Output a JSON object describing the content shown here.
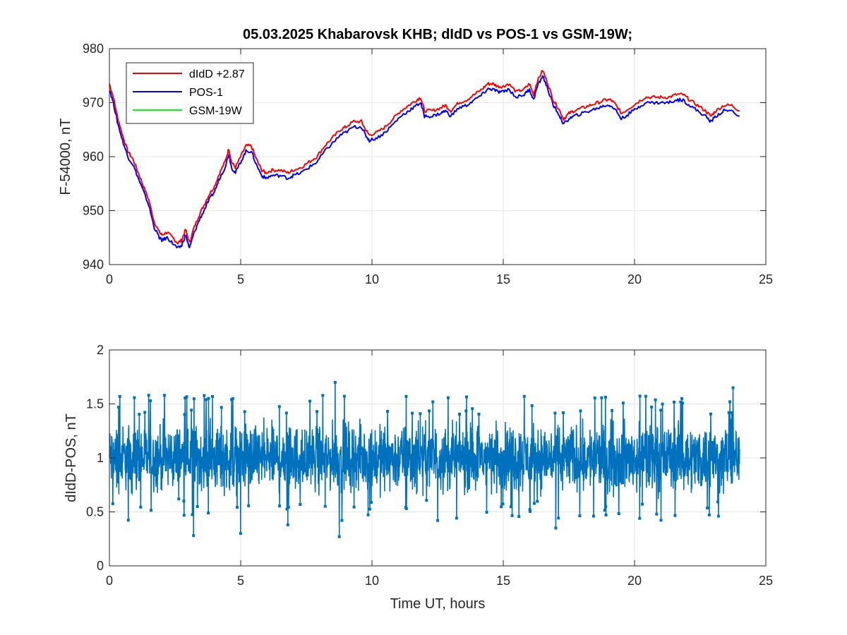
{
  "chart_data": [
    {
      "type": "line",
      "title": "05.03.2025  Khabarovsk KHB; dIdD vs POS-1 vs GSM-19W;",
      "xlabel": "",
      "ylabel": "F-54000, nT",
      "xlim": [
        0,
        25
      ],
      "ylim": [
        940,
        980
      ],
      "xticks": [
        0,
        5,
        10,
        15,
        20,
        25
      ],
      "yticks": [
        940,
        950,
        960,
        970,
        980
      ],
      "grid": true,
      "legend_position": "top-left",
      "series": [
        {
          "name": "dIdD +2.87",
          "color": "#ff0000",
          "x": [
            0,
            0.15,
            0.3,
            0.5,
            0.7,
            0.9,
            1.1,
            1.3,
            1.5,
            1.7,
            1.9,
            2.0,
            2.2,
            2.4,
            2.6,
            2.75,
            2.9,
            3.05,
            3.2,
            3.4,
            3.6,
            3.8,
            4.0,
            4.2,
            4.4,
            4.55,
            4.65,
            4.8,
            5.0,
            5.2,
            5.4,
            5.6,
            5.8,
            5.95,
            6.2,
            6.5,
            6.8,
            7.0,
            7.3,
            7.6,
            7.9,
            8.2,
            8.5,
            8.8,
            9.0,
            9.3,
            9.6,
            9.75,
            9.9,
            10.2,
            10.5,
            10.8,
            11.1,
            11.4,
            11.7,
            11.85,
            12.0,
            12.3,
            12.6,
            12.8,
            13.0,
            13.3,
            13.6,
            13.9,
            14.2,
            14.4,
            14.6,
            14.8,
            15.0,
            15.2,
            15.5,
            15.8,
            16.0,
            16.15,
            16.3,
            16.5,
            16.7,
            16.9,
            17.1,
            17.3,
            17.5,
            17.7,
            18.0,
            18.3,
            18.6,
            18.9,
            19.1,
            19.3,
            19.5,
            19.8,
            20.1,
            20.4,
            20.7,
            21.0,
            21.3,
            21.6,
            21.85,
            22.1,
            22.4,
            22.7,
            22.9,
            23.1,
            23.4,
            23.7,
            24.0
          ],
          "y": [
            973.5,
            971,
            967.5,
            964,
            961,
            959.5,
            957,
            954.5,
            952,
            948,
            946,
            945.5,
            946,
            945,
            944,
            944.5,
            946.5,
            944,
            946.5,
            949,
            951,
            953,
            954.5,
            957,
            959,
            961.5,
            959,
            958,
            960,
            962,
            962,
            959.5,
            957.5,
            957,
            957.5,
            957.5,
            957,
            957.5,
            958,
            959,
            960,
            962,
            963.5,
            965,
            965.5,
            966.5,
            966.5,
            965,
            964,
            964.5,
            965.5,
            967,
            968.5,
            969.5,
            970.5,
            971,
            968.5,
            968.5,
            969,
            969.5,
            968.5,
            970,
            970.5,
            971.5,
            972.5,
            973.5,
            973.5,
            973,
            973,
            973.5,
            972,
            972.5,
            973.5,
            971.5,
            974,
            976,
            973.5,
            970.5,
            969,
            967,
            968,
            968.5,
            969,
            969.5,
            970,
            970.5,
            970.5,
            969.5,
            968,
            969,
            970,
            971,
            971,
            971,
            971,
            971.5,
            971.5,
            970.5,
            969.5,
            968.5,
            967.5,
            968.5,
            969.5,
            969.5,
            968.5
          ]
        },
        {
          "name": "POS-1",
          "color": "#0000ff",
          "x": [
            0,
            0.15,
            0.3,
            0.5,
            0.7,
            0.9,
            1.1,
            1.3,
            1.5,
            1.7,
            1.9,
            2.0,
            2.2,
            2.4,
            2.6,
            2.75,
            2.9,
            3.05,
            3.2,
            3.4,
            3.6,
            3.8,
            4.0,
            4.2,
            4.4,
            4.55,
            4.65,
            4.8,
            5.0,
            5.2,
            5.4,
            5.6,
            5.8,
            5.95,
            6.2,
            6.5,
            6.8,
            7.0,
            7.3,
            7.6,
            7.9,
            8.2,
            8.5,
            8.8,
            9.0,
            9.3,
            9.6,
            9.75,
            9.9,
            10.2,
            10.5,
            10.8,
            11.1,
            11.4,
            11.7,
            11.85,
            12.0,
            12.3,
            12.6,
            12.8,
            13.0,
            13.3,
            13.6,
            13.9,
            14.2,
            14.4,
            14.6,
            14.8,
            15.0,
            15.2,
            15.5,
            15.8,
            16.0,
            16.15,
            16.3,
            16.5,
            16.7,
            16.9,
            17.1,
            17.3,
            17.5,
            17.7,
            18.0,
            18.3,
            18.6,
            18.9,
            19.1,
            19.3,
            19.5,
            19.8,
            20.1,
            20.4,
            20.7,
            21.0,
            21.3,
            21.6,
            21.85,
            22.1,
            22.4,
            22.7,
            22.9,
            23.1,
            23.4,
            23.7,
            24.0
          ],
          "y": [
            972.5,
            970,
            966.5,
            963,
            960,
            958.5,
            956,
            953.5,
            951,
            947,
            945,
            944.5,
            945,
            944,
            943,
            943.5,
            945.5,
            943,
            945.5,
            948,
            950,
            952,
            953.5,
            956,
            958,
            960.5,
            958,
            957,
            959,
            961,
            961,
            958.5,
            956.5,
            956,
            956.5,
            956.5,
            956,
            956.5,
            957,
            958,
            959,
            961,
            962.5,
            964,
            964.5,
            965.5,
            965.5,
            964,
            963,
            963.5,
            964.5,
            966,
            967.5,
            968.5,
            969.5,
            970,
            967.5,
            967.5,
            968,
            968.5,
            967.5,
            969,
            969.5,
            970.5,
            971.5,
            972.5,
            972.5,
            972,
            972,
            972.5,
            971,
            971.5,
            972.5,
            970.5,
            973,
            975,
            972.5,
            969.5,
            968,
            966,
            967,
            967.5,
            968,
            968.5,
            969,
            969.5,
            969.5,
            968.5,
            967,
            968,
            969,
            970,
            970,
            970,
            970,
            970.5,
            970.5,
            969.5,
            968.5,
            967.5,
            966.5,
            967.5,
            968.5,
            968.5,
            967.5
          ]
        },
        {
          "name": "GSM-19W",
          "color": "#00ff00",
          "x": [],
          "y": []
        }
      ]
    },
    {
      "type": "line",
      "title": "",
      "xlabel": "Time UT, hours",
      "ylabel": "dIdD-POS, nT",
      "xlim": [
        0,
        25
      ],
      "ylim": [
        0,
        2
      ],
      "xticks": [
        0,
        5,
        10,
        15,
        20,
        25
      ],
      "yticks": [
        0,
        0.5,
        1,
        1.5,
        2
      ],
      "grid": true,
      "series": [
        {
          "name": "",
          "color": "#0072bd",
          "x_range": [
            0,
            24
          ],
          "mean": 1.0,
          "band": [
            0.62,
            1.42
          ],
          "spikes": [
            {
              "x": 0.4,
              "y": 1.57
            },
            {
              "x": 1.5,
              "y": 1.58
            },
            {
              "x": 2.1,
              "y": 1.58
            },
            {
              "x": 3.2,
              "y": 0.28
            },
            {
              "x": 4.7,
              "y": 1.55
            },
            {
              "x": 5.0,
              "y": 0.3
            },
            {
              "x": 6.8,
              "y": 0.38
            },
            {
              "x": 8.6,
              "y": 1.7
            },
            {
              "x": 8.75,
              "y": 0.27
            },
            {
              "x": 11.3,
              "y": 1.57
            },
            {
              "x": 12.5,
              "y": 0.42
            },
            {
              "x": 15.8,
              "y": 1.57
            },
            {
              "x": 17.0,
              "y": 0.35
            },
            {
              "x": 20.2,
              "y": 0.44
            },
            {
              "x": 21.8,
              "y": 1.55
            },
            {
              "x": 23.2,
              "y": 0.46
            },
            {
              "x": 23.75,
              "y": 1.65
            }
          ]
        }
      ]
    }
  ]
}
